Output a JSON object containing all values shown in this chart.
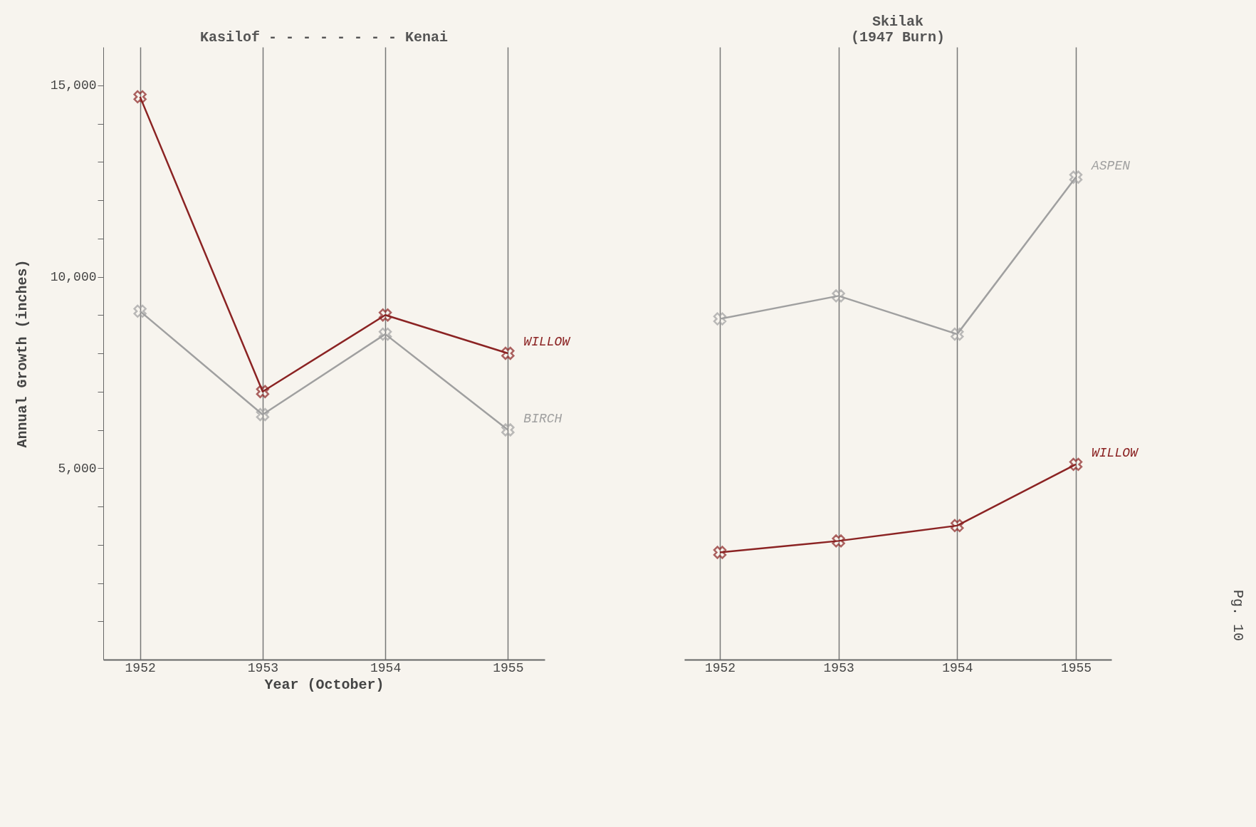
{
  "chart_data": [
    {
      "type": "line",
      "title": "Kasilof - - - - - - - - Kenai",
      "xlabel": "Year (October)",
      "ylabel": "Annual Growth (inches)",
      "categories": [
        "1952",
        "1953",
        "1954",
        "1955"
      ],
      "series": [
        {
          "name": "WILLOW",
          "color": "#8b2323",
          "values": [
            14700,
            7000,
            9000,
            8000
          ]
        },
        {
          "name": "BIRCH",
          "color": "#a0a0a0",
          "values": [
            9100,
            6400,
            8500,
            6000
          ]
        }
      ],
      "ylim": [
        0,
        16000
      ],
      "yticks": [
        {
          "value": 1000,
          "label": null
        },
        {
          "value": 2000,
          "label": null
        },
        {
          "value": 3000,
          "label": null
        },
        {
          "value": 4000,
          "label": null
        },
        {
          "value": 5000,
          "label": "5,000"
        },
        {
          "value": 6000,
          "label": null
        },
        {
          "value": 7000,
          "label": null
        },
        {
          "value": 8000,
          "label": null
        },
        {
          "value": 9000,
          "label": null
        },
        {
          "value": 10000,
          "label": "10,000"
        },
        {
          "value": 11000,
          "label": null
        },
        {
          "value": 12000,
          "label": null
        },
        {
          "value": 13000,
          "label": null
        },
        {
          "value": 14000,
          "label": null
        },
        {
          "value": 15000,
          "label": "15,000"
        }
      ],
      "grid": "x",
      "marker": "cross"
    },
    {
      "type": "line",
      "title": "Skilak\n(1947 Burn)",
      "categories": [
        "1952",
        "1953",
        "1954",
        "1955"
      ],
      "series": [
        {
          "name": "ASPEN",
          "color": "#a0a0a0",
          "values": [
            8900,
            9500,
            8500,
            12600
          ]
        },
        {
          "name": "WILLOW",
          "color": "#8b2323",
          "values": [
            2800,
            3100,
            3500,
            5100
          ]
        }
      ],
      "ylim": [
        0,
        16000
      ],
      "tick_labels": "x",
      "grid": "x",
      "marker": "cross",
      "annotations": [
        "Pg. 10"
      ]
    }
  ]
}
